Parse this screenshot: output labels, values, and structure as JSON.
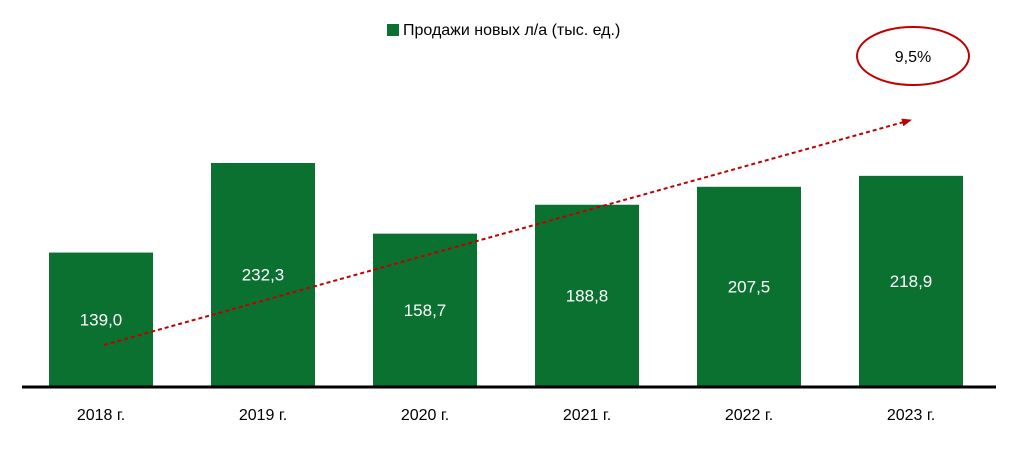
{
  "chart_data": {
    "type": "bar",
    "categories": [
      "2018 г.",
      "2019 г.",
      "2020 г.",
      "2021 г.",
      "2022 г.",
      "2023 г."
    ],
    "series": [
      {
        "name": "Продажи новых л/а (тыс. ед.)",
        "values": [
          139.0,
          232.3,
          158.7,
          188.8,
          207.5,
          218.9
        ],
        "labels": [
          "139,0",
          "232,3",
          "158,7",
          "188,8",
          "207,5",
          "218,9"
        ]
      }
    ],
    "ylim": [
      0,
      250
    ],
    "grid": false,
    "legend_position": "top-center",
    "trend_annotation": "9,5%",
    "colors": {
      "bar": "#0a7130",
      "trend": "#c00000",
      "axis": "#000000"
    }
  }
}
